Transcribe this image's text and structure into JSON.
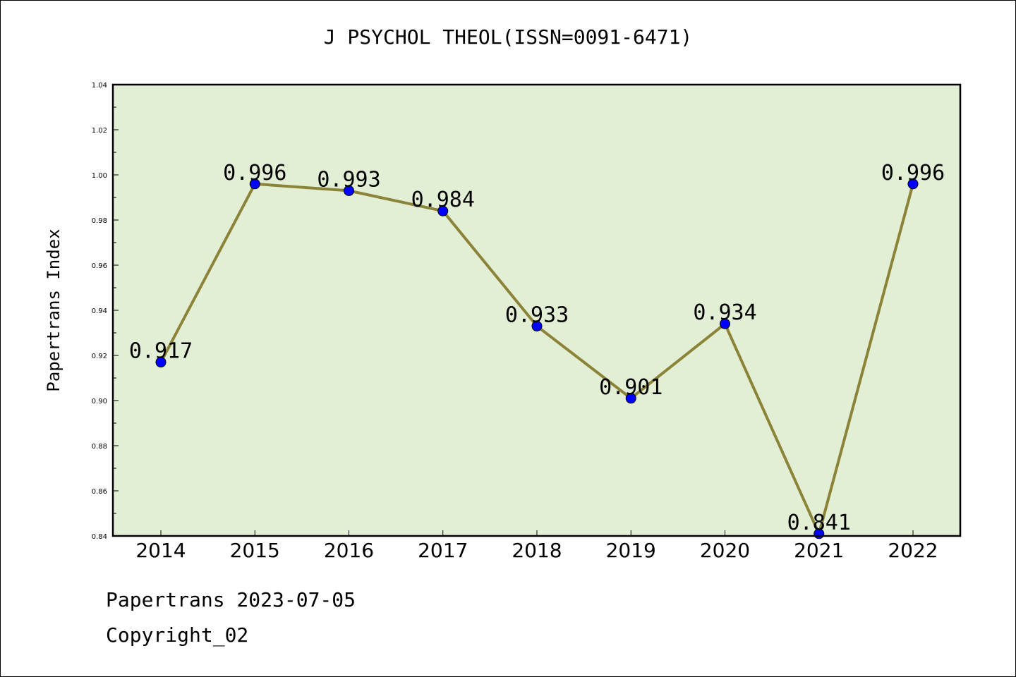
{
  "chart_data": {
    "type": "line",
    "title": "J PSYCHOL THEOL(ISSN=0091-6471)",
    "xlabel": "",
    "ylabel": "Papertrans Index",
    "categories": [
      "2014",
      "2015",
      "2016",
      "2017",
      "2018",
      "2019",
      "2020",
      "2021",
      "2022"
    ],
    "series": [
      {
        "values": [
          0.917,
          0.996,
          0.993,
          0.984,
          0.933,
          0.901,
          0.934,
          0.841,
          0.996
        ]
      }
    ],
    "data_labels": [
      "0.917",
      "0.996",
      "0.993",
      "0.984",
      "0.933",
      "0.901",
      "0.934",
      "0.841",
      "0.996"
    ],
    "ylim": [
      0.84,
      1.04
    ],
    "yticks": [
      "0.84",
      "0.86",
      "0.88",
      "0.90",
      "0.92",
      "0.94",
      "0.96",
      "0.98",
      "1.00",
      "1.02",
      "1.04"
    ],
    "grid": false,
    "colors": {
      "plot_background": "#e2efd5",
      "line": "#8b8438",
      "marker": "#0000ff"
    }
  },
  "footer": {
    "line1": "Papertrans 2023-07-05",
    "line2": "Copyright_02"
  }
}
